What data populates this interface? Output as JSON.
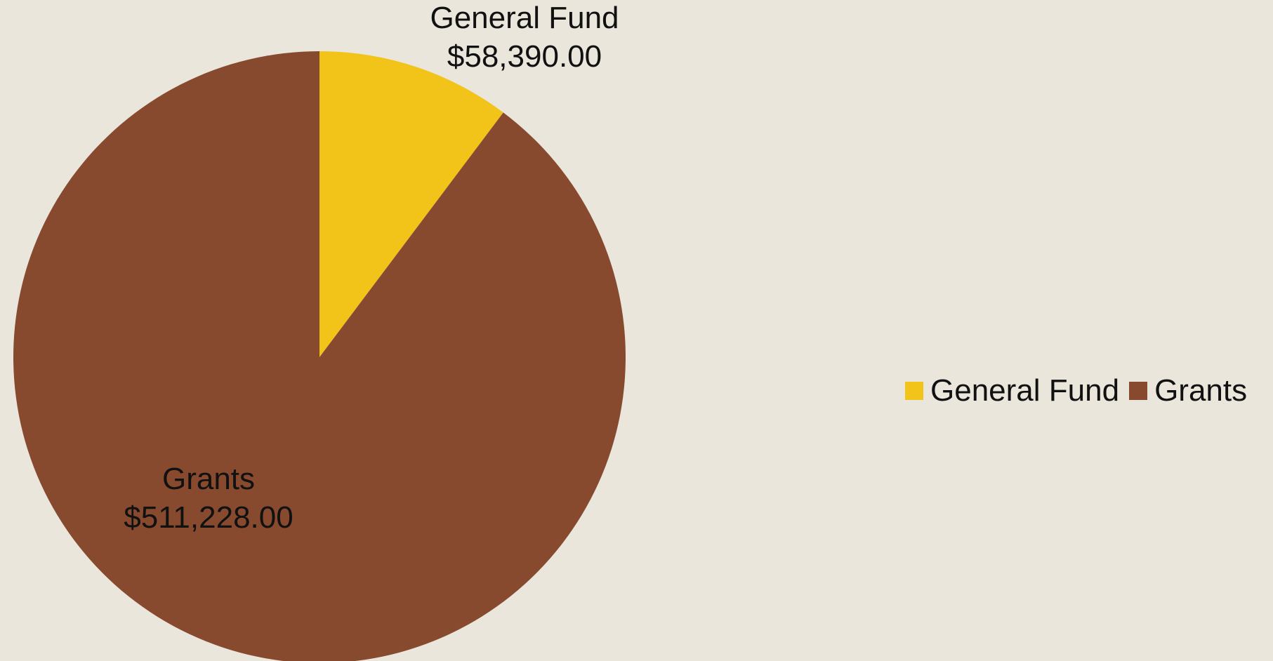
{
  "chart_data": {
    "type": "pie",
    "title": "",
    "categories": [
      "General Fund",
      "Grants"
    ],
    "values": [
      58390.0,
      511228.0
    ],
    "value_labels": [
      "$58,390.00",
      "$511,228.00"
    ],
    "colors": [
      "#F2C319",
      "#874A2E"
    ],
    "legend_position": "right",
    "start": "top, clockwise"
  },
  "legend": {
    "items": [
      {
        "label": "General Fund",
        "color": "#F2C319"
      },
      {
        "label": "Grants",
        "color": "#874A2E"
      }
    ]
  }
}
